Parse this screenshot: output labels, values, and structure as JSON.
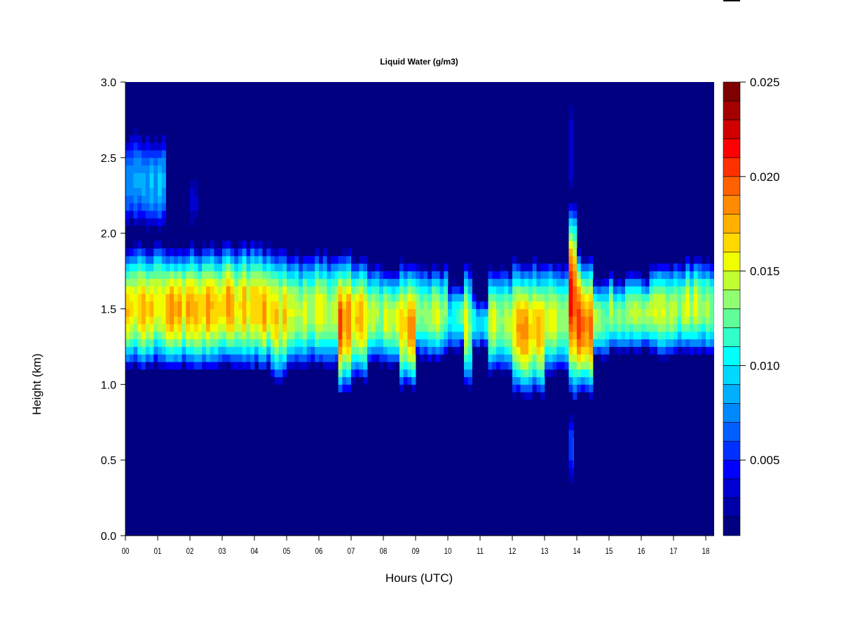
{
  "chart_data": {
    "type": "heatmap",
    "title": "Liquid Water (g/m3)",
    "xlabel": "Hours (UTC)",
    "ylabel": "Height (km)",
    "xlim": [
      0,
      18.25
    ],
    "ylim": [
      0,
      3.0
    ],
    "x_ticks": [
      0,
      1,
      2,
      3,
      4,
      5,
      6,
      7,
      8,
      9,
      10,
      11,
      12,
      13,
      14,
      15,
      16,
      17,
      18
    ],
    "x_tick_labels": [
      "00",
      "01",
      "02",
      "03",
      "04",
      "05",
      "06",
      "07",
      "08",
      "09",
      "10",
      "11",
      "12",
      "13",
      "14",
      "15",
      "16",
      "17",
      "18"
    ],
    "y_ticks": [
      0,
      0.5,
      1.0,
      1.5,
      2.0,
      2.5,
      3.0
    ],
    "y_tick_labels": [
      "0.0",
      "0.5",
      "1.0",
      "1.5",
      "2.0",
      "2.5",
      "3.0"
    ],
    "colorbar": {
      "range": [
        0.001,
        0.025
      ],
      "step": 0.001,
      "ticks": [
        0.005,
        0.01,
        0.015,
        0.02,
        0.025
      ],
      "tick_labels": [
        "0.005",
        "0.010",
        "0.015",
        "0.020",
        "0.025"
      ],
      "background_color": "#000080",
      "colors": [
        "#000080",
        "#0000A8",
        "#0000D0",
        "#0000FF",
        "#0030FF",
        "#0060FF",
        "#0088FF",
        "#00B0FF",
        "#00D8FF",
        "#00FFFF",
        "#30FFC8",
        "#60FF98",
        "#90FF70",
        "#C0FF30",
        "#F0FF00",
        "#FFD800",
        "#FFB000",
        "#FF8C00",
        "#FF6000",
        "#FF3000",
        "#FF0000",
        "#D00000",
        "#A50000",
        "#7F0000"
      ]
    },
    "cloud_segments": [
      {
        "start": 0.0,
        "end": 4.5,
        "base": 1.13,
        "top": 1.95,
        "peak": 0.018
      },
      {
        "start": 4.5,
        "end": 5.0,
        "base": 1.05,
        "top": 1.95,
        "peak": 0.017
      },
      {
        "start": 5.0,
        "end": 6.6,
        "base": 1.15,
        "top": 1.9,
        "peak": 0.016
      },
      {
        "start": 6.6,
        "end": 7.0,
        "base": 0.95,
        "top": 1.9,
        "peak": 0.02
      },
      {
        "start": 7.0,
        "end": 7.5,
        "base": 1.05,
        "top": 1.85,
        "peak": 0.017
      },
      {
        "start": 7.5,
        "end": 8.5,
        "base": 1.15,
        "top": 1.82,
        "peak": 0.015
      },
      {
        "start": 8.5,
        "end": 9.0,
        "base": 1.0,
        "top": 1.85,
        "peak": 0.018
      },
      {
        "start": 9.0,
        "end": 10.0,
        "base": 1.2,
        "top": 1.82,
        "peak": 0.015
      },
      {
        "start": 10.0,
        "end": 10.5,
        "base": 1.25,
        "top": 1.7,
        "peak": 0.012
      },
      {
        "start": 10.5,
        "end": 10.75,
        "base": 1.0,
        "top": 1.85,
        "peak": 0.015
      },
      {
        "start": 10.75,
        "end": 11.25,
        "base": 1.25,
        "top": 1.6,
        "peak": 0.011
      },
      {
        "start": 11.25,
        "end": 12.0,
        "base": 1.1,
        "top": 1.8,
        "peak": 0.015
      },
      {
        "start": 12.0,
        "end": 13.0,
        "base": 0.95,
        "top": 1.85,
        "peak": 0.018
      },
      {
        "start": 13.0,
        "end": 13.75,
        "base": 1.1,
        "top": 1.85,
        "peak": 0.016
      },
      {
        "start": 13.75,
        "end": 14.0,
        "base": 0.93,
        "top": 2.2,
        "peak": 0.022
      },
      {
        "start": 14.0,
        "end": 14.5,
        "base": 0.95,
        "top": 1.9,
        "peak": 0.02
      },
      {
        "start": 14.5,
        "end": 15.0,
        "base": 1.2,
        "top": 1.75,
        "peak": 0.014
      },
      {
        "start": 15.0,
        "end": 16.25,
        "base": 1.25,
        "top": 1.75,
        "peak": 0.015
      },
      {
        "start": 16.25,
        "end": 18.25,
        "base": 1.22,
        "top": 1.85,
        "peak": 0.015
      },
      {
        "start": 0.0,
        "end": 1.25,
        "base": 2.05,
        "top": 2.7,
        "peak": 0.009
      },
      {
        "start": 2.0,
        "end": 2.25,
        "base": 2.05,
        "top": 2.45,
        "peak": 0.004
      },
      {
        "start": 13.75,
        "end": 13.9,
        "base": 0.35,
        "top": 0.85,
        "peak": 0.006
      },
      {
        "start": 13.75,
        "end": 13.9,
        "base": 2.2,
        "top": 3.0,
        "peak": 0.004
      }
    ]
  }
}
